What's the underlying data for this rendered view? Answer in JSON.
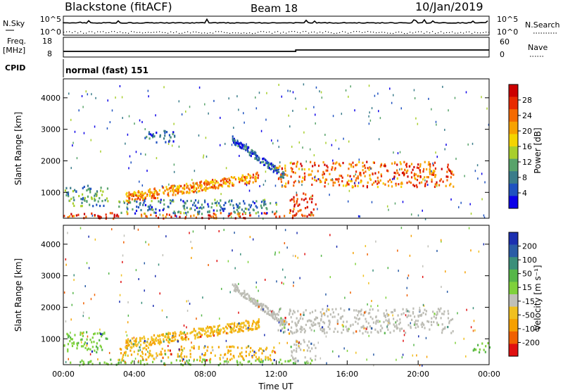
{
  "header": {
    "station": "Blackstone (fitACF)",
    "beam": "Beam 18",
    "date": "10/Jan/2019"
  },
  "param_labels": {
    "nsky": "N.Sky",
    "freq": "Freq.",
    "freq_unit": "[MHz]",
    "cpid": "CPID",
    "nsearch": "N.Search",
    "nave": "Nave",
    "nsky_ticks": [
      "10^5",
      "10^0"
    ],
    "nsearch_ticks": [
      "10^5",
      "10^0"
    ],
    "freq_ticks": [
      "18",
      "8"
    ],
    "nave_ticks": [
      "60",
      "0"
    ]
  },
  "cpid_text": "normal (fast) 151",
  "colors": {
    "power_scale": [
      "#0b00e8",
      "#1f52c0",
      "#3a7c8a",
      "#58a36a",
      "#a8cf2c",
      "#f4d400",
      "#f7a200",
      "#f46a00",
      "#e82a00",
      "#cc0000"
    ],
    "velocity_scale": [
      "#1b2fb0",
      "#2a5ca6",
      "#3b8f7a",
      "#56b649",
      "#7fd13b",
      "#c0c0b8",
      "#f0c020",
      "#f5a000",
      "#f06000",
      "#e01010"
    ],
    "ground_scatter": "#bdbdb5"
  },
  "chart_data": [
    {
      "type": "heatmap",
      "parameter": "power",
      "xlabel": "",
      "ylabel": "Slant Range [km]",
      "xlim": [
        "00:00",
        "24:00"
      ],
      "ylim": [
        180,
        4600
      ],
      "y_ticks": [
        1000,
        2000,
        3000,
        4000
      ],
      "colorbar": {
        "label": "Power [dB]",
        "ticks": [
          4,
          8,
          12,
          16,
          20,
          24,
          28
        ],
        "range": [
          0,
          32
        ]
      },
      "regions": [
        {
          "feature": "low-range near-field scatter",
          "t": [
            0,
            14
          ],
          "range_km": [
            200,
            380
          ],
          "power_db": 26
        },
        {
          "feature": "early band",
          "t": [
            0,
            2.5
          ],
          "range_km": [
            600,
            1250
          ],
          "power_db": 10
        },
        {
          "feature": "ascending band",
          "t": [
            3.5,
            11
          ],
          "range_km": [
            700,
            1700
          ],
          "power_db": 22
        },
        {
          "feature": "lower band",
          "t": [
            3,
            12
          ],
          "range_km": [
            350,
            800
          ],
          "power_db": 8
        },
        {
          "feature": "descending streak",
          "t": [
            9.5,
            12.5
          ],
          "range_km": [
            1400,
            2600
          ],
          "power_db": 6
        },
        {
          "feature": "upper patch",
          "t": [
            4.5,
            6.3
          ],
          "range_km": [
            2600,
            3000
          ],
          "power_db": 5
        },
        {
          "feature": "afternoon band",
          "t": [
            12,
            22
          ],
          "range_km": [
            1200,
            2000
          ],
          "power_db": 24
        },
        {
          "feature": "midday patch",
          "t": [
            12.7,
            14.2
          ],
          "range_km": [
            300,
            1000
          ],
          "power_db": 27
        }
      ]
    },
    {
      "type": "heatmap",
      "parameter": "velocity",
      "xlabel": "Time UT",
      "ylabel": "Slant Range [km]",
      "xlim": [
        "00:00",
        "24:00"
      ],
      "ylim": [
        180,
        4600
      ],
      "x_ticks": [
        "00:00",
        "04:00",
        "08:00",
        "12:00",
        "16:00",
        "20:00",
        "00:00"
      ],
      "y_ticks": [
        1000,
        2000,
        3000,
        4000
      ],
      "colorbar": {
        "label": "Velocity [m s⁻¹]",
        "ticks": [
          200,
          100,
          50,
          15,
          -15,
          -50,
          -100,
          -200
        ]
      },
      "regions": [
        {
          "feature": "low-range scatter",
          "t": [
            0,
            14
          ],
          "range_km": [
            200,
            380
          ],
          "velocity": 40
        },
        {
          "feature": "early band",
          "t": [
            0,
            2.5
          ],
          "range_km": [
            600,
            1250
          ],
          "velocity": 40
        },
        {
          "feature": "ascending band",
          "t": [
            3.5,
            11
          ],
          "range_km": [
            700,
            1700
          ],
          "velocity": -60
        },
        {
          "feature": "lower band",
          "t": [
            3,
            12
          ],
          "range_km": [
            350,
            800
          ],
          "velocity": -60
        },
        {
          "feature": "descending streak",
          "t": [
            9.5,
            12.5
          ],
          "range_km": [
            1400,
            2600
          ],
          "velocity": 0
        },
        {
          "feature": "afternoon band",
          "t": [
            12,
            22
          ],
          "range_km": [
            1200,
            2000
          ],
          "velocity": 0
        },
        {
          "feature": "midday patch",
          "t": [
            12.7,
            14.2
          ],
          "range_km": [
            300,
            1000
          ],
          "velocity": 0
        },
        {
          "feature": "end-of-day patch",
          "t": [
            23,
            24
          ],
          "range_km": [
            600,
            900
          ],
          "velocity": 40
        }
      ]
    }
  ]
}
